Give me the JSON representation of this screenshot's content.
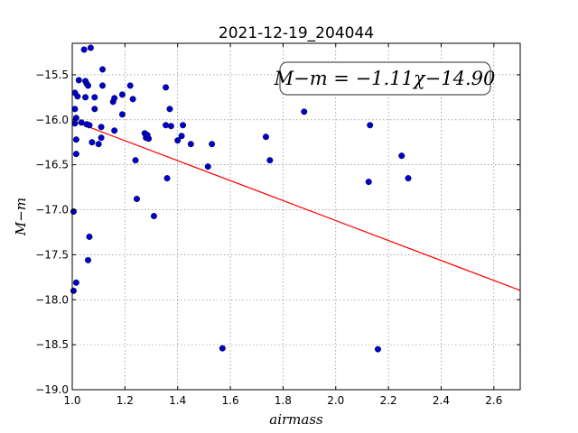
{
  "chart_data": {
    "type": "scatter",
    "title": "2021-12-19_204044",
    "xlabel": "airmass",
    "ylabel": "M−m",
    "xlim": [
      1.0,
      2.7
    ],
    "ylim": [
      -19.0,
      -15.15
    ],
    "y_inverted": true,
    "grid": true,
    "xticks": [
      1.0,
      1.2,
      1.4,
      1.6,
      1.8,
      2.0,
      2.2,
      2.4,
      2.6
    ],
    "xtick_labels": [
      "1.0",
      "1.2",
      "1.4",
      "1.6",
      "1.8",
      "2.0",
      "2.2",
      "2.4",
      "2.6"
    ],
    "yticks": [
      -15.5,
      -16.0,
      -16.5,
      -17.0,
      -17.5,
      -18.0,
      -18.5,
      -19.0
    ],
    "ytick_labels": [
      "−15.5",
      "−16.0",
      "−16.5",
      "−17.0",
      "−17.5",
      "−18.0",
      "−18.5",
      "−19.0"
    ],
    "annotation": "M−m = −1.11χ−14.90",
    "fit": {
      "slope": -1.11,
      "intercept": -14.9,
      "color": "#ff0000"
    },
    "point_color": "#0000cc",
    "points": [
      [
        1.045,
        -15.22
      ],
      [
        1.07,
        -15.2
      ],
      [
        1.115,
        -15.44
      ],
      [
        1.025,
        -15.56
      ],
      [
        1.05,
        -15.57
      ],
      [
        1.055,
        -15.6
      ],
      [
        1.06,
        -15.62
      ],
      [
        1.01,
        -15.7
      ],
      [
        1.02,
        -15.74
      ],
      [
        1.05,
        -15.75
      ],
      [
        1.085,
        -15.75
      ],
      [
        1.115,
        -15.62
      ],
      [
        1.155,
        -15.8
      ],
      [
        1.16,
        -15.76
      ],
      [
        1.19,
        -15.72
      ],
      [
        1.22,
        -15.62
      ],
      [
        1.23,
        -15.77
      ],
      [
        1.01,
        -15.88
      ],
      [
        1.015,
        -15.98
      ],
      [
        1.01,
        -16.04
      ],
      [
        1.035,
        -16.03
      ],
      [
        1.055,
        -16.05
      ],
      [
        1.065,
        -16.06
      ],
      [
        1.085,
        -15.88
      ],
      [
        1.19,
        -15.94
      ],
      [
        1.015,
        -16.22
      ],
      [
        1.075,
        -16.25
      ],
      [
        1.1,
        -16.27
      ],
      [
        1.11,
        -16.2
      ],
      [
        1.11,
        -16.08
      ],
      [
        1.16,
        -16.12
      ],
      [
        1.015,
        -16.38
      ],
      [
        1.275,
        -16.15
      ],
      [
        1.28,
        -16.2
      ],
      [
        1.29,
        -16.21
      ],
      [
        1.285,
        -16.17
      ],
      [
        1.24,
        -16.45
      ],
      [
        1.245,
        -16.88
      ],
      [
        1.31,
        -17.07
      ],
      [
        1.355,
        -15.64
      ],
      [
        1.37,
        -15.88
      ],
      [
        1.355,
        -16.06
      ],
      [
        1.375,
        -16.07
      ],
      [
        1.42,
        -16.06
      ],
      [
        1.415,
        -16.18
      ],
      [
        1.4,
        -16.23
      ],
      [
        1.45,
        -16.27
      ],
      [
        1.36,
        -16.65
      ],
      [
        1.515,
        -16.52
      ],
      [
        1.53,
        -16.27
      ],
      [
        1.57,
        -18.54
      ],
      [
        1.735,
        -16.19
      ],
      [
        1.75,
        -16.45
      ],
      [
        1.88,
        -15.91
      ],
      [
        2.13,
        -16.06
      ],
      [
        2.125,
        -16.69
      ],
      [
        2.16,
        -18.55
      ],
      [
        2.25,
        -16.4
      ],
      [
        2.275,
        -16.65
      ],
      [
        1.005,
        -17.02
      ],
      [
        1.065,
        -17.3
      ],
      [
        1.06,
        -17.56
      ],
      [
        1.015,
        -17.81
      ],
      [
        1.005,
        -17.9
      ]
    ]
  }
}
